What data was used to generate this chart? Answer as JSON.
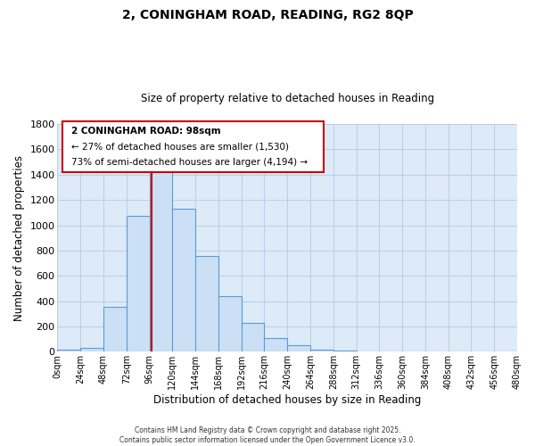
{
  "title": "2, CONINGHAM ROAD, READING, RG2 8QP",
  "subtitle": "Size of property relative to detached houses in Reading",
  "xlabel": "Distribution of detached houses by size in Reading",
  "ylabel": "Number of detached properties",
  "bin_edges": [
    0,
    24,
    48,
    72,
    96,
    120,
    144,
    168,
    192,
    216,
    240,
    264,
    288,
    312,
    336,
    360,
    384,
    408,
    432,
    456,
    480
  ],
  "bar_heights": [
    15,
    30,
    355,
    1075,
    1485,
    1130,
    760,
    440,
    230,
    110,
    55,
    20,
    10,
    0,
    0,
    0,
    0,
    0,
    0,
    0
  ],
  "bar_color": "#cce0f5",
  "bar_edge_color": "#5b9bd5",
  "grid_color": "#b8cfe8",
  "background_color": "#ddeaf7",
  "vline_x": 98,
  "vline_color": "#cc0000",
  "ylim": [
    0,
    1800
  ],
  "yticks": [
    0,
    200,
    400,
    600,
    800,
    1000,
    1200,
    1400,
    1600,
    1800
  ],
  "annotation_title": "2 CONINGHAM ROAD: 98sqm",
  "annotation_line1": "← 27% of detached houses are smaller (1,530)",
  "annotation_line2": "73% of semi-detached houses are larger (4,194) →",
  "footer_line1": "Contains HM Land Registry data © Crown copyright and database right 2025.",
  "footer_line2": "Contains public sector information licensed under the Open Government Licence v3.0.",
  "tick_labels": [
    "0sqm",
    "24sqm",
    "48sqm",
    "72sqm",
    "96sqm",
    "120sqm",
    "144sqm",
    "168sqm",
    "192sqm",
    "216sqm",
    "240sqm",
    "264sqm",
    "288sqm",
    "312sqm",
    "336sqm",
    "360sqm",
    "384sqm",
    "408sqm",
    "432sqm",
    "456sqm",
    "480sqm"
  ]
}
